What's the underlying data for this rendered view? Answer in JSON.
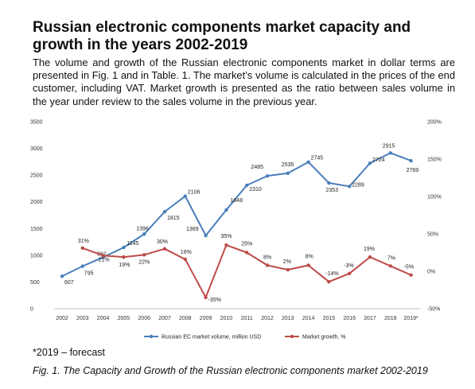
{
  "page": {
    "title": "Russian electronic components market capacity and growth in the years 2002-2019",
    "description": "The volume and growth of the Russian electronic components market in dollar terms are presented in Fig. 1 and in Table. 1. The market’s volume is calculated in the prices of the end customer, including VAT. Market growth is presented as the ratio between sales volume in the year under review to the sales volume in the previous year.",
    "footnote": "*2019 – forecast",
    "caption": "Fig. 1. The Capacity and Growth of the Russian electronic components market 2002-2019"
  },
  "colors": {
    "volume": "#4a7ebb",
    "growth": "#be4b48",
    "axis": "#bfbfbf"
  },
  "chart_data": {
    "type": "line",
    "categories": [
      "2002",
      "2003",
      "2004",
      "2005",
      "2006",
      "2007",
      "2008",
      "2009",
      "2010",
      "2011",
      "2012",
      "2013",
      "2014",
      "2015",
      "2016",
      "2017",
      "2018",
      "2019*"
    ],
    "series": [
      {
        "name": "Russian EC market volume, million USD",
        "axis": "left",
        "values": [
          607,
          795,
          962,
          1145,
          1396,
          1815,
          2106,
          1369,
          1848,
          2310,
          2485,
          2535,
          2745,
          2353,
          2289,
          2724,
          2915,
          2769
        ],
        "labels": [
          "607",
          "795",
          "962",
          "1145",
          "1396",
          "1815",
          "2106",
          "1369",
          "1848",
          "2310",
          "2485",
          "2535",
          "2745",
          "2353",
          "2289",
          "2724",
          "2915",
          "2769"
        ]
      },
      {
        "name": "Market growth, %",
        "axis": "right",
        "values": [
          null,
          31,
          21,
          19,
          22,
          30,
          16,
          -35,
          35,
          25,
          8,
          2,
          8,
          -14,
          -3,
          19,
          7,
          -5
        ],
        "labels": [
          "",
          "31%",
          "21%",
          "19%",
          "22%",
          "30%",
          "16%",
          "-35%",
          "35%",
          "25%",
          "8%",
          "2%",
          "8%",
          "-14%",
          "-3%",
          "19%",
          "7%",
          "-5%"
        ]
      }
    ],
    "y_left": {
      "ticks": [
        "0",
        "500",
        "1000",
        "1500",
        "2000",
        "2500",
        "3000",
        "3500"
      ],
      "min": 0,
      "max": 3500
    },
    "y_right": {
      "ticks": [
        "-50%",
        "0%",
        "50%",
        "100%",
        "150%",
        "200%"
      ],
      "min": -50,
      "max": 200
    },
    "legend_position": "bottom",
    "grid": false
  }
}
